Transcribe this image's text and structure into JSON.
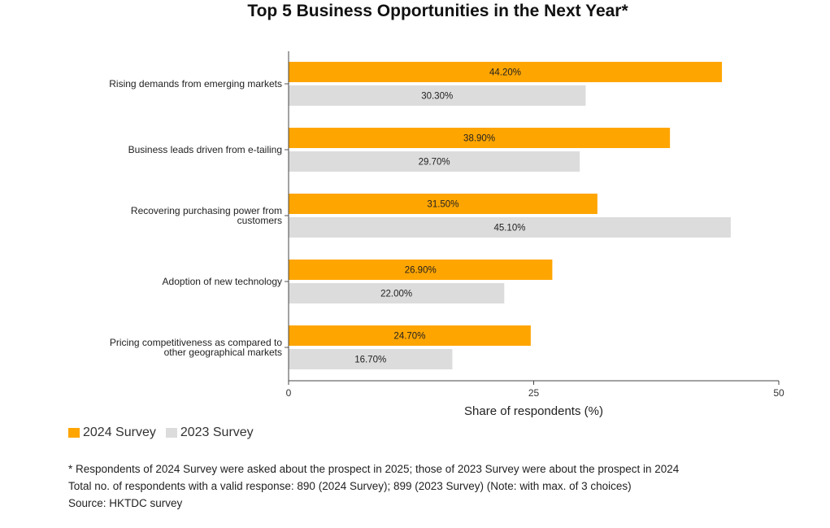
{
  "chart_data": {
    "type": "bar",
    "orientation": "horizontal",
    "title": "Top 5 Business Opportunities in the Next Year*",
    "categories": [
      "Rising demands from emerging markets",
      "Business leads driven from e-tailing",
      "Recovering purchasing power from customers",
      "Adoption of new technology",
      "Pricing competitiveness as compared to other geographical markets"
    ],
    "category_label_lines": [
      [
        "Rising demands from emerging markets"
      ],
      [
        "Business leads driven from e-tailing"
      ],
      [
        "Recovering purchasing power from",
        "customers"
      ],
      [
        "Adoption of new technology"
      ],
      [
        "Pricing competitiveness as compared to",
        "other geographical markets"
      ]
    ],
    "series": [
      {
        "name": "2024 Survey",
        "color": "#FFA500",
        "values": [
          44.2,
          38.9,
          31.5,
          26.9,
          24.7
        ],
        "labels": [
          "44.20%",
          "38.90%",
          "31.50%",
          "26.90%",
          "24.70%"
        ]
      },
      {
        "name": "2023 Survey",
        "color": "#DCDCDC",
        "values": [
          30.3,
          29.7,
          45.1,
          22.0,
          16.7
        ],
        "labels": [
          "30.30%",
          "29.70%",
          "45.10%",
          "22.00%",
          "16.70%"
        ]
      }
    ],
    "xlabel": "Share of respondents (%)",
    "ylabel": "",
    "xlim": [
      0,
      50
    ],
    "xticks": [
      0,
      25,
      50
    ],
    "grid": false,
    "legend": "bottom-left"
  },
  "notes": [
    "* Respondents of 2024 Survey were asked about the prospect in 2025; those of 2023 Survey were about the prospect in 2024",
    "Total no. of respondents with a valid response: 890 (2024 Survey); 899 (2023 Survey) (Note: with max. of 3 choices)",
    "Source: HKTDC survey"
  ]
}
